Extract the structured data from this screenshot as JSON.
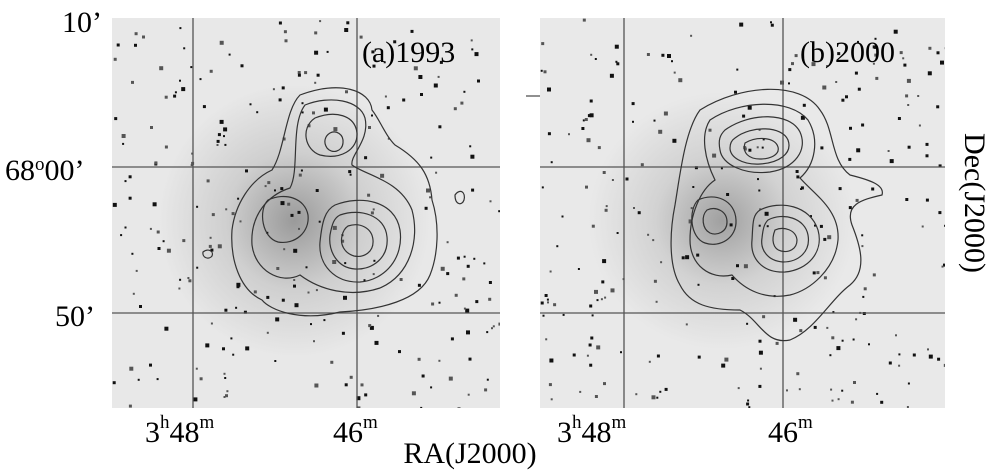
{
  "panels": [
    {
      "label": "(a)1993",
      "x_ticks": [
        {
          "hour": "3",
          "hour_unit": "h",
          "minute": "48",
          "minute_unit": "m"
        },
        {
          "minute": "46",
          "minute_unit": "m"
        }
      ]
    },
    {
      "label": "(b)2000",
      "x_ticks": [
        {
          "hour": "3",
          "hour_unit": "h",
          "minute": "48",
          "minute_unit": "m"
        },
        {
          "minute": "46",
          "minute_unit": "m"
        }
      ]
    }
  ],
  "y_ticks": [
    {
      "text": "10’"
    },
    {
      "main": "68",
      "sup": "o",
      "rest": "00’"
    },
    {
      "text": "50’"
    }
  ],
  "x_axis_label": "RA(J2000)",
  "y_axis_label": "Dec(J2000)"
}
